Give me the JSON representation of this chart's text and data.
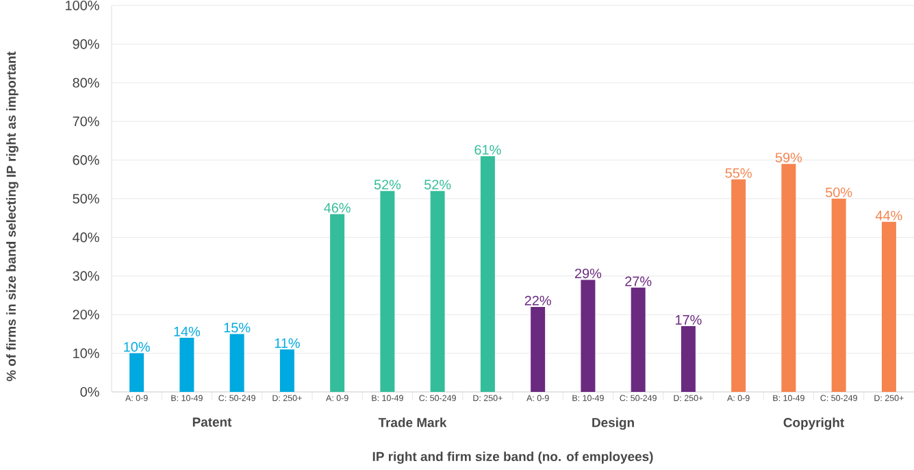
{
  "chart_data": {
    "type": "bar",
    "xlabel": "IP right and firm size band (no. of employees)",
    "ylabel": "% of firms in size band selecting IP right as important",
    "categories": [
      "A: 0-9",
      "B: 10-49",
      "C: 50-249",
      "D: 250+",
      "A: 0-9",
      "B: 10-49",
      "C: 50-249",
      "D: 250+",
      "A: 0-9",
      "B: 10-49",
      "C: 50-249",
      "D: 250+",
      "A: 0-9",
      "B: 10-49",
      "C: 50-249",
      "D: 250+"
    ],
    "series": [
      {
        "name": "Patent",
        "color": "#00a9e0",
        "values": [
          10,
          14,
          15,
          11,
          null,
          null,
          null,
          null,
          null,
          null,
          null,
          null,
          null,
          null,
          null,
          null
        ],
        "value_labels": [
          "10%",
          "14%",
          "15%",
          "11%",
          null,
          null,
          null,
          null,
          null,
          null,
          null,
          null,
          null,
          null,
          null,
          null
        ]
      },
      {
        "name": "Trade Mark",
        "color": "#34bd9a",
        "values": [
          null,
          null,
          null,
          null,
          46,
          52,
          52,
          61,
          null,
          null,
          null,
          null,
          null,
          null,
          null,
          null
        ],
        "value_labels": [
          null,
          null,
          null,
          null,
          "46%",
          "52%",
          "52%",
          "61%",
          null,
          null,
          null,
          null,
          null,
          null,
          null,
          null
        ]
      },
      {
        "name": "Design",
        "color": "#6a2a7f",
        "values": [
          null,
          null,
          null,
          null,
          null,
          null,
          null,
          null,
          22,
          29,
          27,
          17,
          null,
          null,
          null,
          null
        ],
        "value_labels": [
          null,
          null,
          null,
          null,
          null,
          null,
          null,
          null,
          "22%",
          "29%",
          "27%",
          "17%",
          null,
          null,
          null,
          null
        ]
      },
      {
        "name": "Copyright",
        "color": "#f5844f",
        "values": [
          null,
          null,
          null,
          null,
          null,
          null,
          null,
          null,
          null,
          null,
          null,
          null,
          55,
          59,
          50,
          44
        ],
        "value_labels": [
          null,
          null,
          null,
          null,
          null,
          null,
          null,
          null,
          null,
          null,
          null,
          null,
          "55%",
          "59%",
          "50%",
          "44%"
        ]
      }
    ],
    "ylim": [
      0,
      100
    ],
    "yticks": [
      {
        "value": 0,
        "label": "0%"
      },
      {
        "value": 10,
        "label": "10%"
      },
      {
        "value": 20,
        "label": "20%"
      },
      {
        "value": 30,
        "label": "30%"
      },
      {
        "value": 40,
        "label": "40%"
      },
      {
        "value": 50,
        "label": "50%"
      },
      {
        "value": 60,
        "label": "60%"
      },
      {
        "value": 70,
        "label": "70%"
      },
      {
        "value": 80,
        "label": "80%"
      },
      {
        "value": 90,
        "label": "90%"
      },
      {
        "value": 100,
        "label": "100%"
      }
    ],
    "grid": "y"
  }
}
